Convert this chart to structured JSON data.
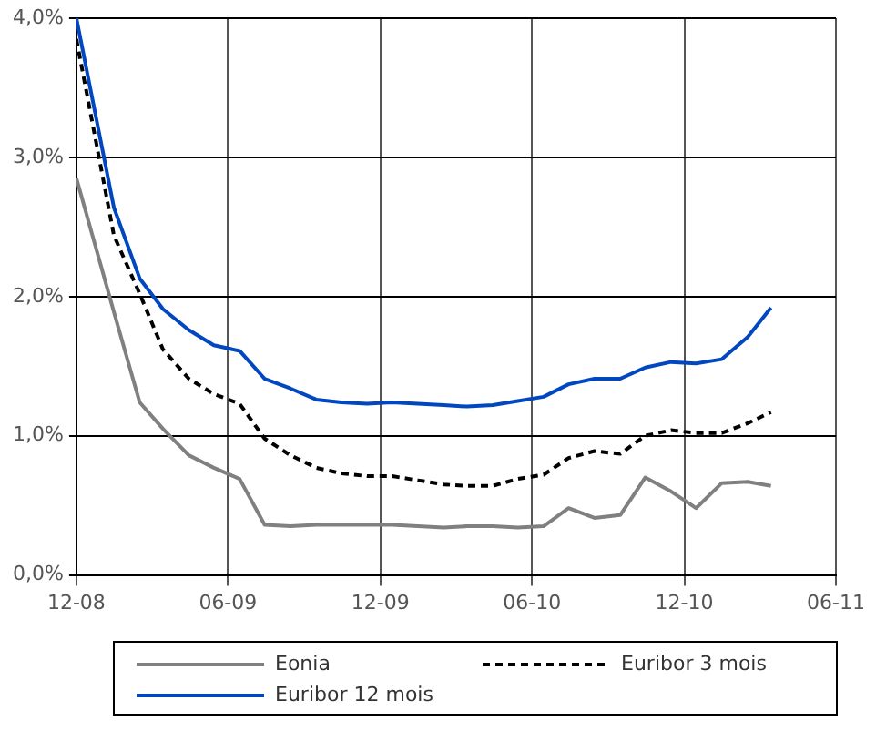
{
  "chart_data": {
    "type": "line",
    "x": [
      "2008-12-01",
      "2009-01-15",
      "2009-02-15",
      "2009-03-15",
      "2009-04-15",
      "2009-05-15",
      "2009-06-15",
      "2009-07-15",
      "2009-08-15",
      "2009-09-15",
      "2009-10-15",
      "2009-11-15",
      "2009-12-15",
      "2010-01-15",
      "2010-02-15",
      "2010-03-15",
      "2010-04-15",
      "2010-05-15",
      "2010-06-15",
      "2010-07-15",
      "2010-08-15",
      "2010-09-15",
      "2010-10-15",
      "2010-11-15",
      "2010-12-15",
      "2011-01-15",
      "2011-02-15",
      "2011-03-15"
    ],
    "series": [
      {
        "name": "Eonia",
        "color": "#808080",
        "line_style": "solid",
        "values": [
          2.85,
          1.89,
          1.24,
          1.05,
          0.86,
          0.77,
          0.69,
          0.36,
          0.35,
          0.36,
          0.36,
          0.36,
          0.36,
          0.35,
          0.34,
          0.35,
          0.35,
          0.34,
          0.35,
          0.48,
          0.41,
          0.43,
          0.7,
          0.6,
          0.48,
          0.66,
          0.67,
          0.64
        ]
      },
      {
        "name": "Euribor 3 mois",
        "color": "#000000",
        "line_style": "dashed",
        "values": [
          3.85,
          2.44,
          2.02,
          1.62,
          1.41,
          1.3,
          1.23,
          0.98,
          0.86,
          0.77,
          0.73,
          0.71,
          0.71,
          0.68,
          0.65,
          0.64,
          0.64,
          0.69,
          0.72,
          0.84,
          0.89,
          0.87,
          1.0,
          1.04,
          1.02,
          1.02,
          1.09,
          1.17
        ]
      },
      {
        "name": "Euribor 12 mois",
        "color": "#0047c0",
        "line_style": "solid",
        "values": [
          4.0,
          2.64,
          2.13,
          1.91,
          1.76,
          1.65,
          1.61,
          1.41,
          1.34,
          1.26,
          1.24,
          1.23,
          1.24,
          1.23,
          1.22,
          1.21,
          1.22,
          1.25,
          1.28,
          1.37,
          1.41,
          1.41,
          1.49,
          1.53,
          1.52,
          1.55,
          1.71,
          1.92
        ]
      }
    ],
    "xlim": [
      "2008-12-01",
      "2011-06-01"
    ],
    "xticks": [
      {
        "value": "2008-12-01",
        "label": "12-08"
      },
      {
        "value": "2009-06-01",
        "label": "06-09"
      },
      {
        "value": "2009-12-01",
        "label": "12-09"
      },
      {
        "value": "2010-06-01",
        "label": "06-10"
      },
      {
        "value": "2010-12-01",
        "label": "12-10"
      },
      {
        "value": "2011-06-01",
        "label": "06-11"
      }
    ],
    "ylim": [
      0,
      4
    ],
    "yticks": [
      {
        "value": 0,
        "label": "0,0%"
      },
      {
        "value": 1,
        "label": "1,0%"
      },
      {
        "value": 2,
        "label": "2,0%"
      },
      {
        "value": 3,
        "label": "3,0%"
      },
      {
        "value": 4,
        "label": "4,0%"
      }
    ],
    "grid": true,
    "legend": "bottom",
    "marker": "none"
  }
}
